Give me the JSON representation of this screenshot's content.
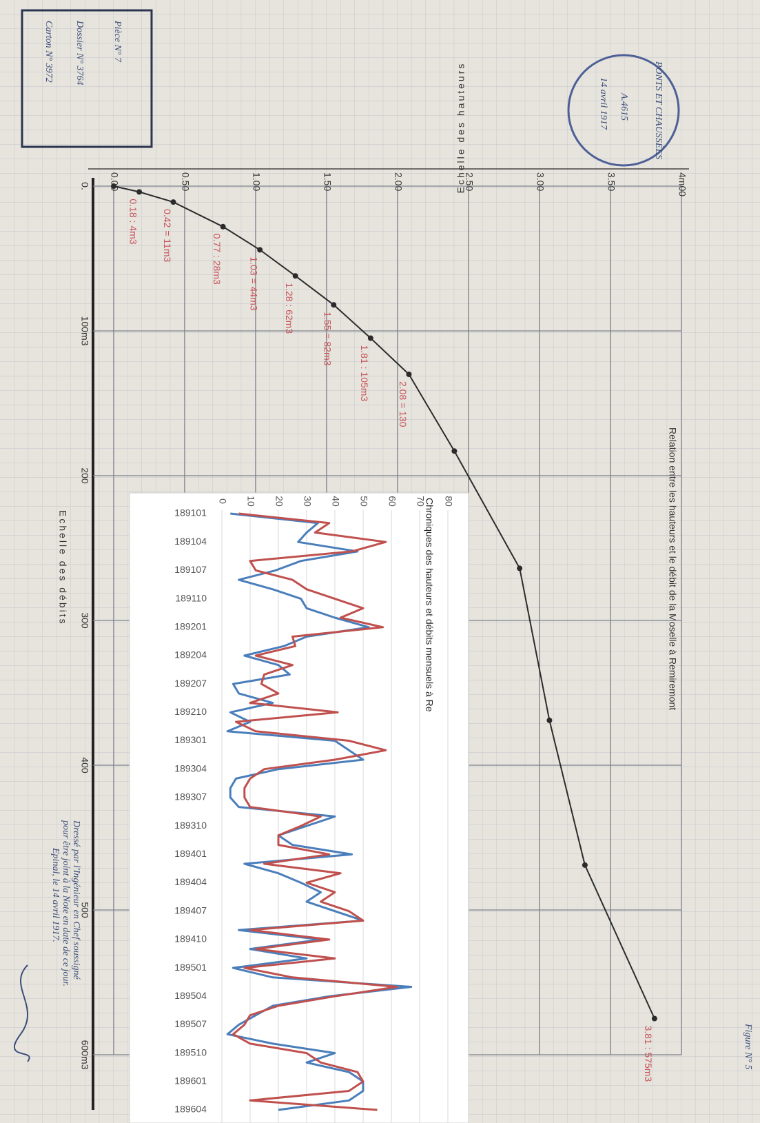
{
  "chart_data": [
    {
      "type": "line",
      "title": "Relation entre les hauteurs et le débit de la Moselle à Remiremont",
      "x_label": "Echelle des débits",
      "y_label": "Echelle des hauteurs",
      "x": [
        0,
        4,
        11,
        28,
        44,
        62,
        82,
        105,
        130,
        183,
        264,
        369,
        469,
        575
      ],
      "values": [
        0,
        0.18,
        0.42,
        0.77,
        1.03,
        1.28,
        1.55,
        1.81,
        2.08,
        2.4,
        2.86,
        3.07,
        3.32,
        3.81
      ],
      "value_labels": [
        null,
        "0.18 : 4m3",
        "0.42 = 11m3",
        "0.77 : 28m3",
        "1.03 = 44m3",
        "1.28 : 62m3",
        "1.55 = 82m3",
        "1.81 : 105m3",
        "2.08 = 130",
        null,
        null,
        null,
        null,
        "3.81 : 575m3"
      ],
      "color": "#2b2b2b",
      "label_color": "#c8525a",
      "xlim": [
        0,
        600
      ],
      "ylim": [
        0,
        4
      ],
      "xticks": [
        {
          "value": 0,
          "label": "0."
        },
        {
          "value": 100,
          "label": "100m3"
        },
        200,
        300,
        400,
        500,
        {
          "value": 600,
          "label": "600m3"
        }
      ],
      "yticks": [
        {
          "value": 0,
          "label": "0.00"
        },
        {
          "value": 0.5,
          "label": "0.50"
        },
        {
          "value": 1,
          "label": "1.00"
        },
        {
          "value": 1.5,
          "label": "1.50"
        },
        {
          "value": 2,
          "label": "2.00"
        },
        {
          "value": 2.5,
          "label": "2.50"
        },
        {
          "value": 3,
          "label": "3.00"
        },
        {
          "value": 3.5,
          "label": "3.50"
        },
        {
          "value": 4,
          "label": "4m00"
        }
      ],
      "grid": true
    },
    {
      "type": "line",
      "title": "Chroniques des hauteurs et débits mensuels à Re",
      "categories": [
        "189101",
        null,
        null,
        "189104",
        null,
        null,
        "189107",
        null,
        null,
        "189110",
        null,
        null,
        "189201",
        null,
        null,
        "189204",
        null,
        null,
        "189207",
        null,
        null,
        "189210",
        null,
        null,
        "189301",
        null,
        null,
        "189304",
        null,
        null,
        "189307",
        null,
        null,
        "189310",
        null,
        null,
        "189401",
        null,
        null,
        "189404",
        null,
        null,
        "189407",
        null,
        null,
        "189410",
        null,
        null,
        "189501",
        null,
        null,
        "189504",
        null,
        null,
        "189507",
        null,
        null,
        "189510",
        null,
        null,
        "189601",
        null,
        null,
        "189604"
      ],
      "series": [
        {
          "color": "#4a7ebb",
          "values": [
            3,
            34,
            30,
            27,
            48,
            28,
            19,
            6,
            18,
            28,
            30,
            40,
            52,
            30,
            22,
            8,
            20,
            24,
            4,
            6,
            18,
            3,
            10,
            2,
            40,
            45,
            50,
            20,
            5,
            3,
            3,
            6,
            40,
            30,
            20,
            25,
            46,
            8,
            20,
            28,
            35,
            30,
            40,
            50,
            6,
            35,
            10,
            30,
            4,
            18,
            67,
            38,
            18,
            12,
            6,
            2,
            18,
            40,
            30,
            45,
            50,
            50,
            45,
            20
          ]
        },
        {
          "color": "#c0504d",
          "values": [
            6,
            38,
            33,
            58,
            46,
            10,
            12,
            25,
            30,
            40,
            50,
            42,
            57,
            25,
            26,
            12,
            25,
            15,
            14,
            20,
            10,
            41,
            5,
            12,
            45,
            58,
            40,
            15,
            10,
            8,
            8,
            10,
            35,
            28,
            20,
            20,
            38,
            15,
            42,
            30,
            40,
            35,
            45,
            50,
            10,
            38,
            12,
            40,
            8,
            25,
            62,
            40,
            20,
            10,
            8,
            4,
            10,
            30,
            35,
            48,
            50,
            45,
            10,
            55
          ]
        }
      ],
      "ylim": [
        0,
        80
      ],
      "yticks": [
        0,
        10,
        20,
        30,
        40,
        50,
        60,
        70,
        80
      ],
      "grid": true
    }
  ],
  "document": {
    "stamp": [
      "Carton N° 3972",
      "Dossier N° 3764",
      "Pièce N° 7"
    ],
    "seal": [
      "PONTS ET CHAUSSÉES",
      "A.4615",
      "14 avril 1917"
    ],
    "figure": "Figure N° 5",
    "signature": [
      "Dressé par l'Ingénieur en Chef soussigné",
      "pour être joint à la Note en date de ce jour.",
      "Epinal, le 14 avril 1917."
    ]
  }
}
